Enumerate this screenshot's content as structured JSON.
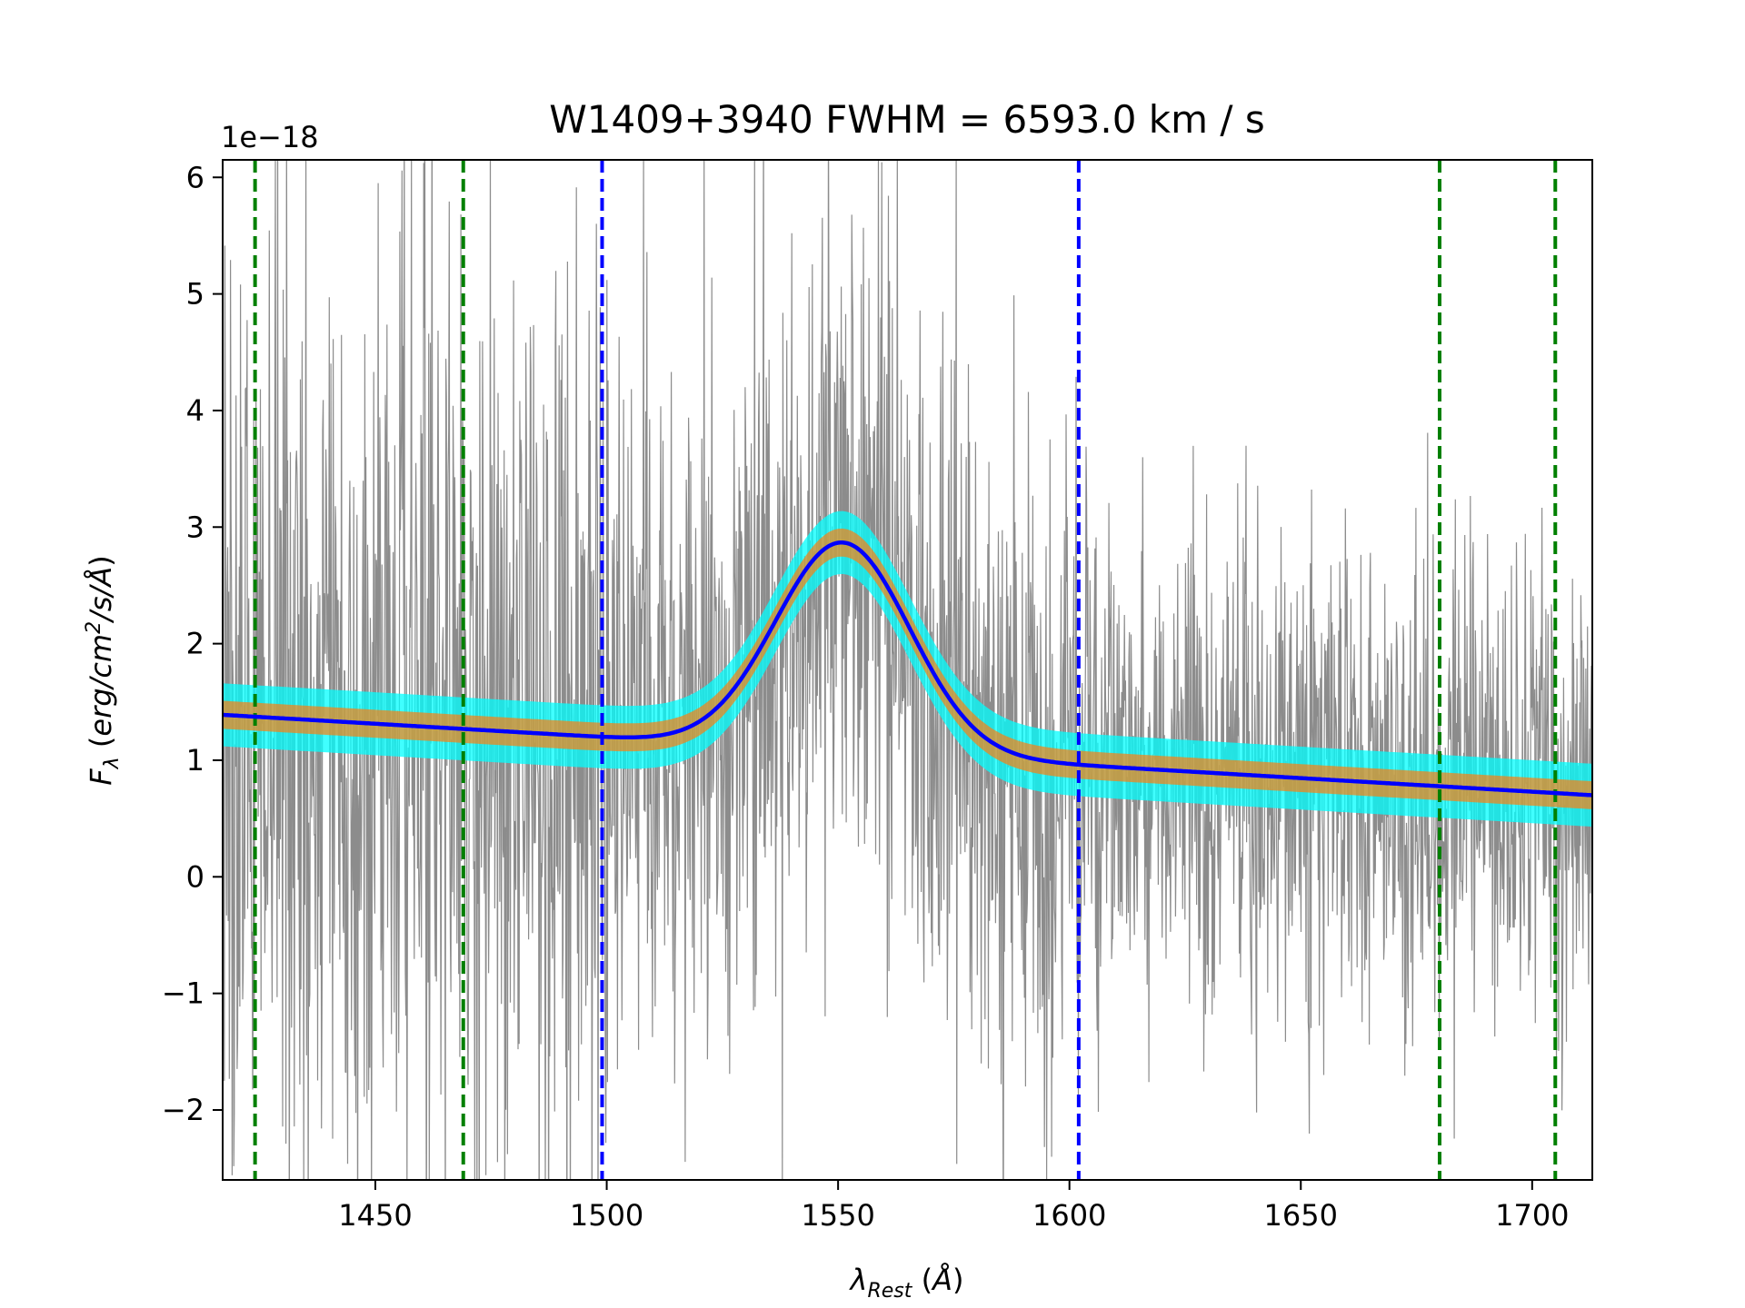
{
  "chart_data": {
    "type": "line",
    "title": "W1409+3940  FWHM = 6593.0 km / s",
    "xlabel": "λ_Rest (Å)",
    "ylabel": "F_λ (erg/cm^2/s/Å)",
    "y_offset_label": "1e−18",
    "xlim": [
      1417,
      1713
    ],
    "ylim": [
      -2.6,
      6.15
    ],
    "grid": false,
    "x_ticks": [
      1450,
      1500,
      1550,
      1600,
      1650,
      1700
    ],
    "y_ticks": [
      -2,
      -1,
      0,
      1,
      2,
      3,
      4,
      5,
      6
    ],
    "x_tick_labels": [
      "1450",
      "1500",
      "1550",
      "1600",
      "1650",
      "1700"
    ],
    "y_tick_labels": [
      "−2",
      "−1",
      "0",
      "1",
      "2",
      "3",
      "4",
      "5",
      "6"
    ],
    "model": {
      "continuum_left": [
        1417,
        1.39
      ],
      "continuum_right": [
        1713,
        0.7
      ],
      "gaussian_peak_x": 1551,
      "gaussian_amplitude": 1.79,
      "gaussian_sigma": 14.5,
      "band_inner_halfwidth": 0.12,
      "band_outer_halfwidth": 0.27
    },
    "vertical_lines": {
      "continuum_windows": [
        1424,
        1469,
        1680,
        1705
      ],
      "line_window": [
        1499,
        1602
      ]
    },
    "colors": {
      "data": "#8c8c8c",
      "model": "#0000ff",
      "inner_band": "#ff7f0e",
      "outer_band": "#00ffff",
      "continuum_lines": "#008000",
      "line_window": "#0000ff"
    }
  }
}
